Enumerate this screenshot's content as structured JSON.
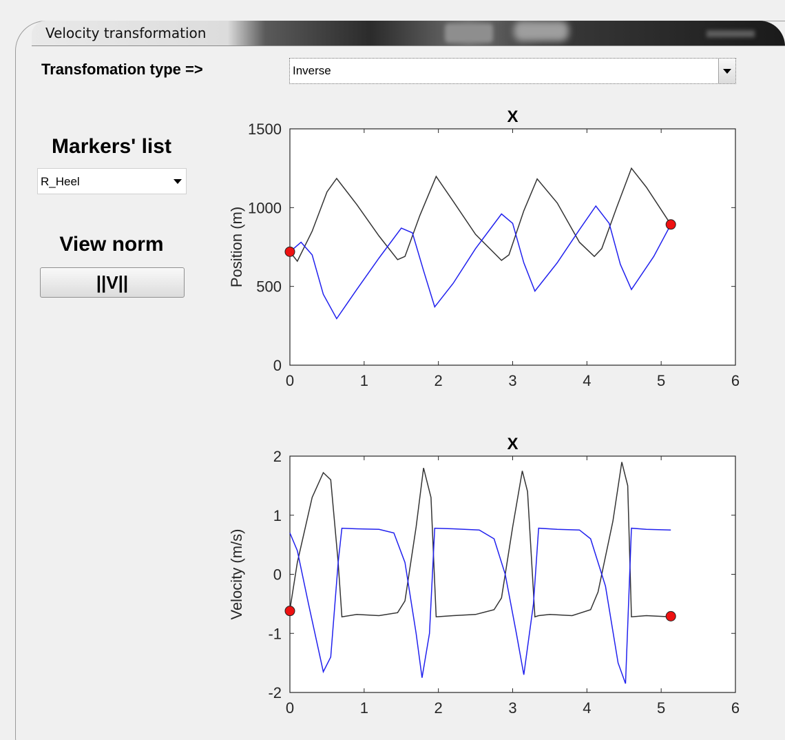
{
  "window": {
    "title": "Velocity transformation"
  },
  "transformation": {
    "label": "Transfomation type =>",
    "selected": "Inverse"
  },
  "markers": {
    "title": "Markers' list",
    "selected": "R_Heel"
  },
  "view_norm": {
    "title": "View norm",
    "button_label": "||V||"
  },
  "colors": {
    "series_black": "#333333",
    "series_blue": "#2020ee",
    "marker_red": "#ee1111"
  },
  "chart_data": [
    {
      "type": "line",
      "title": "X",
      "xlabel": "",
      "ylabel": "Position (m)",
      "xlim": [
        0,
        6
      ],
      "ylim": [
        0,
        1500
      ],
      "xticks": [
        0,
        1,
        2,
        3,
        4,
        5,
        6
      ],
      "yticks": [
        0,
        500,
        1000,
        1500
      ],
      "series": [
        {
          "color": "#333333",
          "x": [
            0,
            0.1,
            0.3,
            0.5,
            0.63,
            0.9,
            1.2,
            1.45,
            1.55,
            1.75,
            1.97,
            2.2,
            2.5,
            2.85,
            2.95,
            3.15,
            3.33,
            3.6,
            3.9,
            4.1,
            4.2,
            4.4,
            4.6,
            4.8,
            5.13
          ],
          "y": [
            720,
            660,
            850,
            1100,
            1185,
            1020,
            820,
            670,
            690,
            950,
            1198,
            1040,
            830,
            665,
            700,
            980,
            1182,
            1030,
            780,
            690,
            740,
            1000,
            1250,
            1130,
            893
          ]
        },
        {
          "color": "#2020ee",
          "x": [
            0,
            0.15,
            0.3,
            0.45,
            0.63,
            0.9,
            1.2,
            1.5,
            1.65,
            1.8,
            1.95,
            2.2,
            2.5,
            2.85,
            3.0,
            3.15,
            3.3,
            3.6,
            3.9,
            4.12,
            4.3,
            4.45,
            4.6,
            4.9,
            5.13
          ],
          "y": [
            720,
            780,
            700,
            450,
            295,
            480,
            680,
            870,
            840,
            600,
            370,
            520,
            740,
            960,
            900,
            650,
            470,
            650,
            860,
            1010,
            900,
            640,
            480,
            690,
            893
          ]
        }
      ],
      "highlighted_points": [
        {
          "x": 0,
          "y": 720
        },
        {
          "x": 5.13,
          "y": 893
        }
      ]
    },
    {
      "type": "line",
      "title": "X",
      "xlabel": "",
      "ylabel": "Velocity (m/s)",
      "xlim": [
        0,
        6
      ],
      "ylim": [
        -2,
        2
      ],
      "xticks": [
        0,
        1,
        2,
        3,
        4,
        5,
        6
      ],
      "yticks": [
        -2,
        -1,
        0,
        1,
        2
      ],
      "series": [
        {
          "color": "#333333",
          "x": [
            0,
            0.1,
            0.3,
            0.45,
            0.55,
            0.65,
            0.7,
            0.9,
            1.2,
            1.45,
            1.55,
            1.7,
            1.8,
            1.9,
            1.97,
            2.2,
            2.5,
            2.75,
            2.85,
            3.0,
            3.13,
            3.2,
            3.3,
            3.35,
            3.5,
            3.8,
            4.05,
            4.15,
            4.35,
            4.47,
            4.55,
            4.6,
            4.8,
            5.13
          ],
          "y": [
            -0.6,
            0.2,
            1.3,
            1.72,
            1.6,
            0.2,
            -0.72,
            -0.68,
            -0.7,
            -0.65,
            -0.45,
            0.8,
            1.8,
            1.3,
            -0.72,
            -0.7,
            -0.68,
            -0.6,
            -0.4,
            0.8,
            1.75,
            1.4,
            -0.72,
            -0.7,
            -0.68,
            -0.7,
            -0.6,
            -0.3,
            0.9,
            1.9,
            1.5,
            -0.72,
            -0.7,
            -0.72
          ]
        },
        {
          "color": "#2020ee",
          "x": [
            0,
            0.1,
            0.25,
            0.45,
            0.55,
            0.65,
            0.7,
            0.9,
            1.2,
            1.4,
            1.55,
            1.7,
            1.78,
            1.88,
            1.95,
            2.2,
            2.55,
            2.75,
            2.9,
            3.05,
            3.15,
            3.28,
            3.35,
            3.6,
            3.9,
            4.05,
            4.25,
            4.42,
            4.52,
            4.6,
            4.8,
            5.13
          ],
          "y": [
            0.7,
            0.4,
            -0.5,
            -1.65,
            -1.4,
            0.2,
            0.78,
            0.77,
            0.76,
            0.7,
            0.2,
            -1.0,
            -1.75,
            -1.0,
            0.78,
            0.77,
            0.75,
            0.6,
            0.0,
            -1.0,
            -1.7,
            -0.5,
            0.78,
            0.76,
            0.75,
            0.6,
            -0.2,
            -1.5,
            -1.85,
            0.78,
            0.76,
            0.75
          ]
        }
      ],
      "highlighted_points": [
        {
          "x": 0,
          "y": -0.62
        },
        {
          "x": 5.13,
          "y": -0.71
        }
      ]
    }
  ]
}
